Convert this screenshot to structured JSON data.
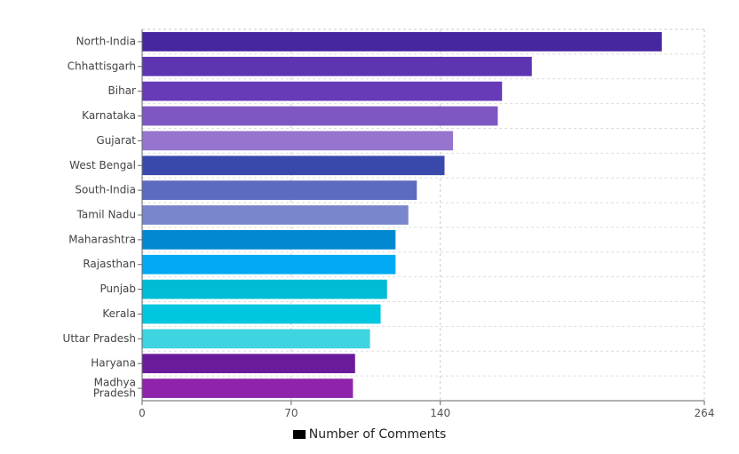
{
  "chart_data": {
    "type": "bar",
    "orientation": "horizontal",
    "categories": [
      "North-India",
      "Chhattisgarh",
      "Bihar",
      "Karnataka",
      "Gujarat",
      "West Bengal",
      "South-India",
      "Tamil Nadu",
      "Maharashtra",
      "Rajasthan",
      "Punjab",
      "Kerala",
      "Uttar Pradesh",
      "Haryana",
      "Madhya Pradesh"
    ],
    "series": [
      {
        "name": "Number of Comments",
        "values": [
          244,
          183,
          169,
          167,
          146,
          142,
          129,
          125,
          119,
          119,
          115,
          112,
          107,
          100,
          99
        ],
        "colors": [
          "#4527a0",
          "#5e35b1",
          "#673ab7",
          "#7e57c2",
          "#9575cd",
          "#3949ab",
          "#5c6bc0",
          "#7986cb",
          "#0288d1",
          "#03a9f4",
          "#00bcd4",
          "#00c7e0",
          "#40d3e0",
          "#6a1b9a",
          "#8e24aa"
        ]
      }
    ],
    "xlim": [
      0,
      264
    ],
    "xticks": [
      0,
      70,
      140,
      264
    ],
    "grid": true,
    "legend_position": "bottom",
    "legend_color": "#000000"
  }
}
